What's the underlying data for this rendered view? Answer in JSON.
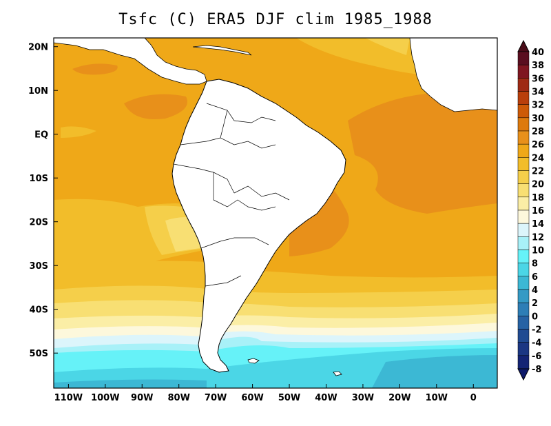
{
  "title": "Tsfc (C) ERA5 DJF clim 1985_1988",
  "map": {
    "lon_range": [
      -114,
      6.5
    ],
    "lat_range": [
      -58,
      22
    ],
    "lon_ticks": [
      {
        "value": -110,
        "label": "110W"
      },
      {
        "value": -100,
        "label": "100W"
      },
      {
        "value": -90,
        "label": "90W"
      },
      {
        "value": -80,
        "label": "80W"
      },
      {
        "value": -70,
        "label": "70W"
      },
      {
        "value": -60,
        "label": "60W"
      },
      {
        "value": -50,
        "label": "50W"
      },
      {
        "value": -40,
        "label": "40W"
      },
      {
        "value": -30,
        "label": "30W"
      },
      {
        "value": -20,
        "label": "20W"
      },
      {
        "value": -10,
        "label": "10W"
      },
      {
        "value": 0,
        "label": "0"
      }
    ],
    "lat_ticks": [
      {
        "value": 20,
        "label": "20N"
      },
      {
        "value": 10,
        "label": "10N"
      },
      {
        "value": 0,
        "label": "EQ"
      },
      {
        "value": -10,
        "label": "10S"
      },
      {
        "value": -20,
        "label": "20S"
      },
      {
        "value": -30,
        "label": "30S"
      },
      {
        "value": -40,
        "label": "40S"
      },
      {
        "value": -50,
        "label": "50S"
      }
    ],
    "land_color": "#ffffff",
    "border_color": "#000000"
  },
  "colorbar": {
    "levels": [
      "40",
      "38",
      "36",
      "34",
      "32",
      "30",
      "28",
      "26",
      "24",
      "22",
      "20",
      "18",
      "16",
      "14",
      "12",
      "10",
      "8",
      "6",
      "4",
      "2",
      "0",
      "-2",
      "-4",
      "-6",
      "-8"
    ],
    "colors": [
      "#5a0e1f",
      "#7f1620",
      "#9e2a14",
      "#b93f0b",
      "#cd5a07",
      "#dd7a0d",
      "#e8901a",
      "#efa818",
      "#f2bd2a",
      "#f5cf4a",
      "#f8df73",
      "#fbeea6",
      "#fdf8dc",
      "#dcf5fb",
      "#a8f1f8",
      "#66f2f8",
      "#4bd6e6",
      "#3cb8d4",
      "#349ac5",
      "#2d7eb6",
      "#2662a4",
      "#204b92",
      "#1b3783",
      "#142474"
    ],
    "under_color": "#0e1a6a",
    "over_color": "#4a0c18"
  }
}
